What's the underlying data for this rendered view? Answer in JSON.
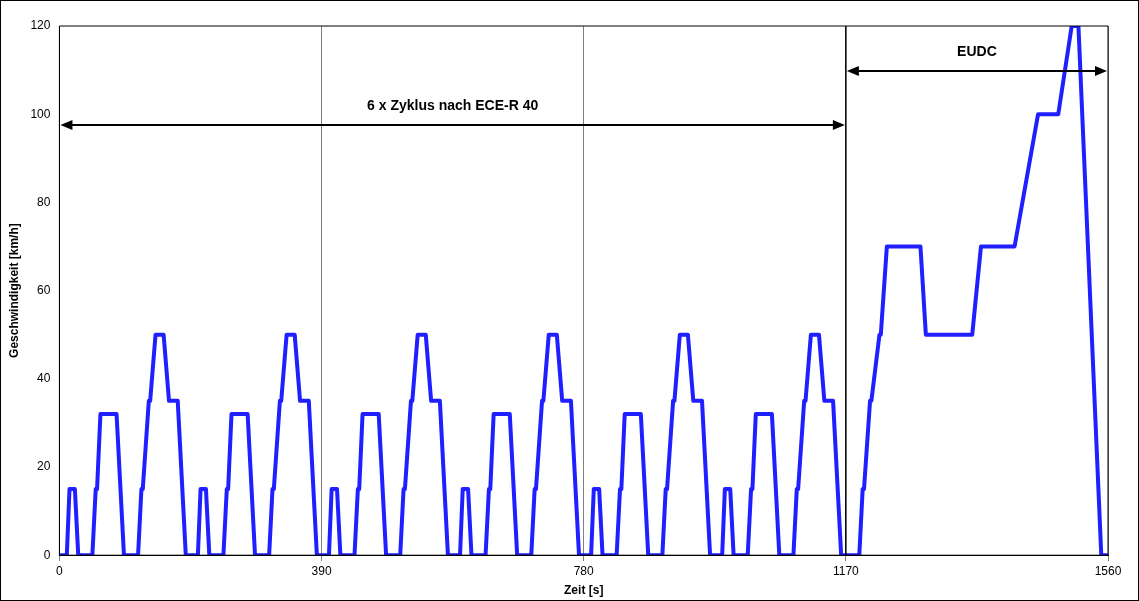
{
  "chart_data": {
    "type": "line",
    "xlabel": "Zeit [s]",
    "ylabel": "Geschwindigkeit [km/h]",
    "series": [
      {
        "color": "#1f1fff",
        "x": [
          0,
          11,
          15,
          23,
          28,
          49,
          54,
          56,
          61,
          85,
          96,
          117,
          122,
          124,
          133,
          135,
          143,
          155,
          163,
          176,
          188,
          195,
          206,
          210,
          218,
          223,
          244,
          249,
          251,
          256,
          280,
          291,
          312,
          317,
          319,
          328,
          330,
          338,
          350,
          358,
          371,
          383,
          390,
          401,
          405,
          413,
          418,
          439,
          444,
          446,
          451,
          475,
          486,
          507,
          512,
          514,
          523,
          525,
          533,
          545,
          553,
          566,
          578,
          585,
          596,
          600,
          608,
          613,
          634,
          639,
          641,
          646,
          670,
          681,
          702,
          707,
          709,
          718,
          720,
          728,
          740,
          748,
          761,
          773,
          780,
          791,
          795,
          803,
          808,
          829,
          834,
          836,
          841,
          865,
          876,
          897,
          902,
          904,
          913,
          915,
          923,
          935,
          943,
          956,
          968,
          975,
          986,
          990,
          998,
          1003,
          1024,
          1029,
          1031,
          1036,
          1060,
          1071,
          1092,
          1097,
          1099,
          1108,
          1110,
          1118,
          1130,
          1138,
          1151,
          1163,
          1170,
          1190,
          1195,
          1197,
          1206,
          1208,
          1220,
          1222,
          1231,
          1281,
          1289,
          1358,
          1371,
          1421,
          1456,
          1486,
          1506,
          1516,
          1550,
          1560
        ],
        "values": [
          0,
          0,
          15,
          15,
          0,
          0,
          15,
          15,
          32,
          32,
          0,
          0,
          15,
          15,
          35,
          35,
          50,
          50,
          35,
          35,
          0,
          0,
          0,
          15,
          15,
          0,
          0,
          15,
          15,
          32,
          32,
          0,
          0,
          15,
          15,
          35,
          35,
          50,
          50,
          35,
          35,
          0,
          0,
          0,
          15,
          15,
          0,
          0,
          15,
          15,
          32,
          32,
          0,
          0,
          15,
          15,
          35,
          35,
          50,
          50,
          35,
          35,
          0,
          0,
          0,
          15,
          15,
          0,
          0,
          15,
          15,
          32,
          32,
          0,
          0,
          15,
          15,
          35,
          35,
          50,
          50,
          35,
          35,
          0,
          0,
          0,
          15,
          15,
          0,
          0,
          15,
          15,
          32,
          32,
          0,
          0,
          15,
          15,
          35,
          35,
          50,
          50,
          35,
          35,
          0,
          0,
          0,
          15,
          15,
          0,
          0,
          15,
          15,
          32,
          32,
          0,
          0,
          15,
          15,
          35,
          35,
          50,
          50,
          35,
          35,
          0,
          0,
          0,
          15,
          15,
          35,
          35,
          50,
          50,
          70,
          70,
          50,
          50,
          70,
          70,
          100,
          100,
          120,
          120,
          0,
          0
        ]
      }
    ],
    "xlim": [
      0,
      1560
    ],
    "xticks": [
      0,
      390,
      780,
      1170,
      1560
    ],
    "ylim": [
      0,
      120
    ],
    "yticks": [
      0,
      20,
      40,
      60,
      80,
      100,
      120
    ],
    "grid": "x",
    "legend": false,
    "marker": "none",
    "line_style": "solid",
    "ref_lines": [
      {
        "axis": "x",
        "value": 1170,
        "color": "#000000"
      }
    ],
    "annotations": [
      "6 x Zyklus nach ECE-R 40",
      "EUDC"
    ]
  }
}
